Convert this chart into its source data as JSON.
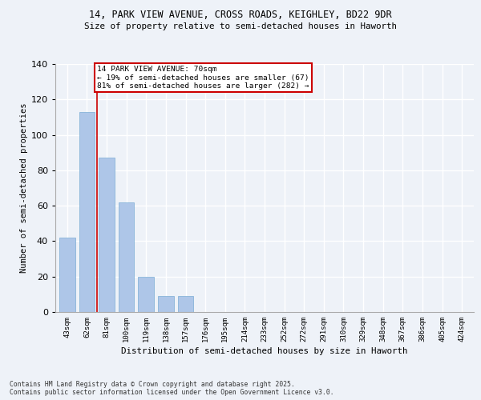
{
  "title_line1": "14, PARK VIEW AVENUE, CROSS ROADS, KEIGHLEY, BD22 9DR",
  "title_line2": "Size of property relative to semi-detached houses in Haworth",
  "xlabel": "Distribution of semi-detached houses by size in Haworth",
  "ylabel": "Number of semi-detached properties",
  "categories": [
    "43sqm",
    "62sqm",
    "81sqm",
    "100sqm",
    "119sqm",
    "138sqm",
    "157sqm",
    "176sqm",
    "195sqm",
    "214sqm",
    "233sqm",
    "252sqm",
    "272sqm",
    "291sqm",
    "310sqm",
    "329sqm",
    "348sqm",
    "367sqm",
    "386sqm",
    "405sqm",
    "424sqm"
  ],
  "values": [
    42,
    113,
    87,
    62,
    20,
    9,
    9,
    0,
    0,
    0,
    0,
    0,
    0,
    0,
    0,
    0,
    0,
    0,
    0,
    0,
    0
  ],
  "bar_color": "#aec6e8",
  "bar_edge_color": "#7aadd4",
  "property_line_x": 1.5,
  "annotation_text_line1": "14 PARK VIEW AVENUE: 70sqm",
  "annotation_text_line2": "← 19% of semi-detached houses are smaller (67)",
  "annotation_text_line3": "81% of semi-detached houses are larger (282) →",
  "annotation_box_color": "#ffffff",
  "annotation_border_color": "#cc0000",
  "footer_line1": "Contains HM Land Registry data © Crown copyright and database right 2025.",
  "footer_line2": "Contains public sector information licensed under the Open Government Licence v3.0.",
  "ylim": [
    0,
    140
  ],
  "background_color": "#eef2f8",
  "grid_color": "#ffffff"
}
